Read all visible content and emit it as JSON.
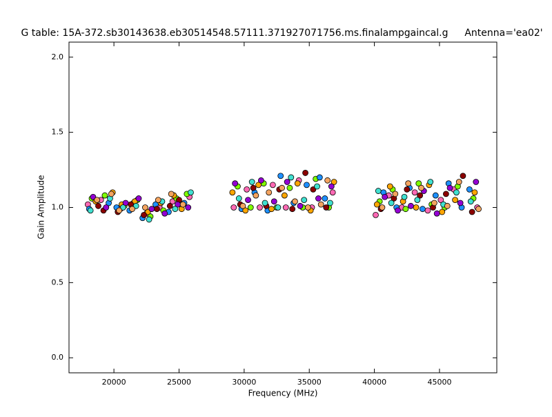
{
  "chart_data": {
    "type": "scatter",
    "title": "G table: 15A-372.sb30143638.eb30514548.57111.371927071756.ms.finalampgaincal.g",
    "annotation": "Antenna='ea02'",
    "x_label": "Frequency (MHz)",
    "y_label": "Gain Amplitude",
    "xlim": [
      16550,
      49400
    ],
    "ylim": [
      -0.1,
      2.1
    ],
    "xticks": [
      20000,
      25000,
      30000,
      35000,
      40000,
      45000
    ],
    "yticks": [
      {
        "value": 0,
        "label": "0.0"
      },
      0.5,
      {
        "value": 1,
        "label": "1.0"
      },
      1.5,
      {
        "value": 2,
        "label": "2.0"
      }
    ],
    "grid": false,
    "series": [
      {
        "color": "#ff69b4",
        "x": [
          18000,
          19000,
          20500,
          21500,
          22500,
          23500,
          24500,
          25800,
          29200,
          30200,
          31200,
          32200,
          33200,
          34200,
          35200,
          36800,
          40100,
          41100,
          42100,
          43100,
          44100,
          45100,
          46100,
          47900
        ],
        "values": [
          1.02,
          1.05,
          0.99,
          1.03,
          0.96,
          1.0,
          1.04,
          1.07,
          1.0,
          1.12,
          1.0,
          1.15,
          1.0,
          1.18,
          1.0,
          1.1,
          0.95,
          1.08,
          1.0,
          1.1,
          0.98,
          1.05,
          1.12,
          1.0
        ]
      },
      {
        "color": "#7fff00",
        "x": [
          18300,
          19300,
          20800,
          21800,
          22800,
          23800,
          24800,
          25600,
          29500,
          30500,
          31500,
          32500,
          33500,
          34500,
          35500,
          36500,
          40400,
          41400,
          42400,
          43400,
          44400,
          45400,
          46400,
          47600
        ],
        "values": [
          1.06,
          1.08,
          1.01,
          1.05,
          0.94,
          0.98,
          1.06,
          1.09,
          1.14,
          1.0,
          1.16,
          1.0,
          1.13,
          1.0,
          1.19,
          1.0,
          1.04,
          1.12,
          0.99,
          1.16,
          1.02,
          1.0,
          1.14,
          1.06
        ]
      },
      {
        "color": "#1e90ff",
        "x": [
          18100,
          19600,
          20200,
          21200,
          22200,
          23200,
          24200,
          25400,
          29800,
          30800,
          31800,
          32800,
          33800,
          34800,
          35800,
          36200,
          40700,
          41700,
          42700,
          43700,
          44700,
          45700,
          46700,
          47300
        ],
        "values": [
          0.99,
          1.03,
          1.0,
          0.98,
          0.93,
          1.02,
          0.97,
          1.03,
          0.99,
          1.1,
          0.98,
          1.21,
          1.03,
          1.15,
          1.2,
          1.06,
          1.1,
          1.0,
          1.13,
          0.99,
          1.08,
          1.16,
          1.0,
          1.12
        ]
      },
      {
        "color": "#ffa500",
        "x": [
          18600,
          19900,
          20600,
          21600,
          22600,
          23600,
          24600,
          25200,
          29100,
          30100,
          31100,
          32100,
          33100,
          34100,
          35100,
          36900,
          40200,
          41200,
          42200,
          43200,
          44200,
          45200,
          46200,
          47700
        ],
        "values": [
          1.04,
          1.1,
          1.02,
          1.04,
          0.97,
          1.03,
          1.08,
          0.99,
          1.1,
          0.98,
          1.15,
          0.99,
          1.08,
          1.16,
          0.98,
          1.17,
          1.02,
          1.14,
          1.04,
          1.0,
          1.15,
          0.97,
          1.05,
          1.1
        ]
      },
      {
        "color": "#8b0000",
        "x": [
          18800,
          19200,
          20300,
          21300,
          22300,
          23300,
          24300,
          25000,
          29700,
          30700,
          31700,
          32700,
          33700,
          34700,
          35300,
          36300,
          40500,
          41500,
          42500,
          43500,
          44500,
          45500,
          46800,
          47500
        ],
        "values": [
          1.01,
          0.98,
          0.97,
          1.02,
          0.95,
          0.99,
          1.01,
          1.05,
          1.02,
          1.13,
          1.01,
          1.12,
          0.99,
          1.23,
          1.12,
          1.0,
          0.99,
          1.06,
          1.12,
          1.08,
          1.0,
          1.09,
          1.21,
          0.97
        ]
      },
      {
        "color": "#9400d3",
        "x": [
          18400,
          19400,
          20900,
          21900,
          22900,
          23900,
          24900,
          25700,
          29300,
          30300,
          31300,
          32300,
          33300,
          34300,
          35700,
          36700,
          40800,
          41800,
          42800,
          43800,
          44800,
          45800,
          46600,
          47800
        ],
        "values": [
          1.07,
          1.0,
          1.03,
          1.06,
          0.99,
          0.96,
          1.02,
          1.0,
          1.16,
          1.05,
          1.18,
          1.04,
          1.17,
          1.01,
          1.06,
          1.14,
          1.07,
          0.98,
          1.01,
          1.11,
          0.96,
          1.13,
          1.03,
          1.17
        ]
      },
      {
        "color": "#40e0d0",
        "x": [
          18200,
          19700,
          20700,
          21700,
          22700,
          23700,
          24700,
          25900,
          29600,
          30600,
          31600,
          32600,
          33600,
          34600,
          35600,
          36600,
          40300,
          41300,
          42300,
          43300,
          44300,
          45300,
          46300,
          47400
        ],
        "values": [
          0.98,
          1.06,
          1.0,
          1.01,
          0.92,
          1.04,
          0.99,
          1.1,
          1.06,
          1.17,
          1.03,
          1.0,
          1.2,
          1.05,
          1.14,
          1.03,
          1.11,
          1.03,
          1.07,
          1.05,
          1.17,
          1.02,
          1.1,
          1.04
        ]
      },
      {
        "color": "#f4a460",
        "x": [
          18700,
          19800,
          20400,
          21400,
          22400,
          23400,
          24400,
          25300,
          29900,
          30900,
          31900,
          32900,
          33900,
          34900,
          35900,
          36400,
          40600,
          41600,
          42600,
          43600,
          44600,
          45600,
          46500,
          48000
        ],
        "values": [
          1.05,
          1.09,
          0.98,
          0.99,
          1.0,
          1.05,
          1.09,
          1.02,
          1.01,
          1.08,
          1.1,
          1.13,
          1.04,
          1.0,
          1.02,
          1.18,
          1.0,
          1.09,
          1.16,
          1.13,
          1.03,
          1.01,
          1.17,
          0.99
        ]
      }
    ]
  }
}
